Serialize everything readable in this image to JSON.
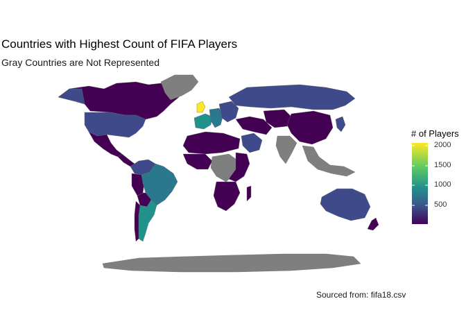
{
  "title": "Countries with Highest Count of FIFA Players",
  "subtitle": "Gray Countries are Not Represented",
  "caption": "Sourced from: fifa18.csv",
  "legend": {
    "title": "# of Players",
    "ticks": [
      "2000",
      "1500",
      "1000",
      "500"
    ],
    "colors": [
      "#fde725",
      "#5ec962",
      "#21918c",
      "#3b528b",
      "#440154"
    ]
  },
  "colors": {
    "not_represented": "#7f7f7f",
    "low": "#440154",
    "mid_low": "#3e4a89",
    "mid": "#2a788e",
    "mid_high": "#21918c",
    "high": "#fde725"
  }
}
